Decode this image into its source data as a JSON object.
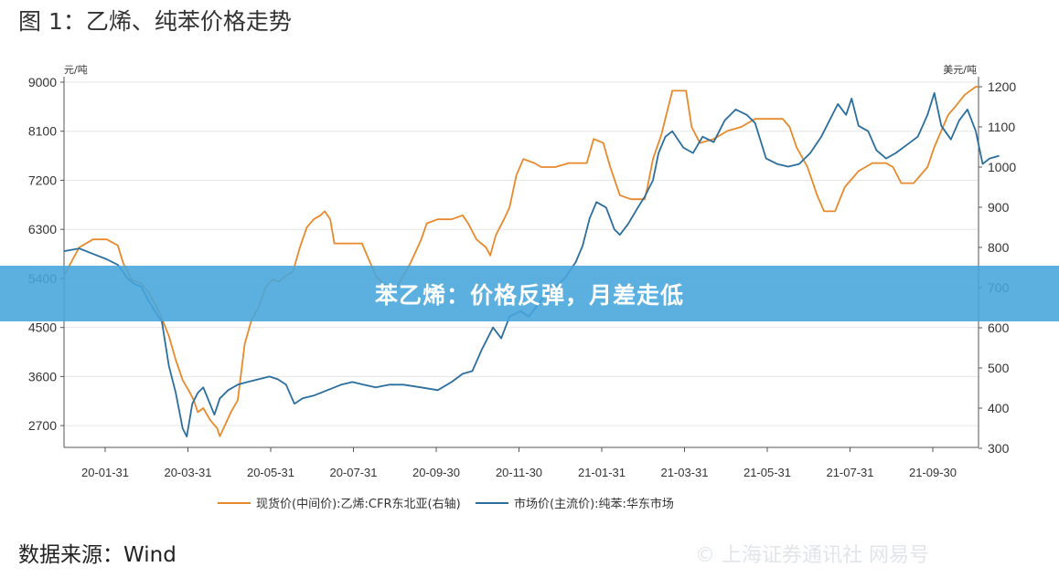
{
  "figure": {
    "title": "图 1：乙烯、纯苯价格走势",
    "source": "数据来源：Wind",
    "banner": "苯乙烯：价格反弹，月差走低",
    "watermark": "© 上海证券通讯社 网易号",
    "colors": {
      "orange": "#E8892B",
      "blue": "#2B6E9E",
      "banner": "#46A5DC",
      "grid": "#e6e6e6",
      "axis": "#555555"
    }
  },
  "chart_data": {
    "type": "line",
    "left_unit": "元/吨",
    "right_unit": "美元/吨",
    "y_left": {
      "min": 2300,
      "max": 9000,
      "ticks": [
        2700,
        3600,
        4500,
        5400,
        6300,
        7200,
        8100,
        9000
      ]
    },
    "y_right": {
      "min": 300,
      "max": 1200,
      "ticks": [
        300,
        400,
        500,
        600,
        700,
        800,
        900,
        1000,
        1100,
        1200
      ]
    },
    "x_ticks": [
      "20-01-31",
      "20-03-31",
      "20-05-31",
      "20-07-31",
      "20-09-30",
      "20-11-30",
      "21-01-31",
      "21-03-31",
      "21-05-31",
      "21-07-31",
      "21-09-30"
    ],
    "x_range": [
      -31,
      632
    ],
    "series": [
      {
        "name": "现货价(中间价):乙烯:CFR东北亚(右轴)",
        "axis": "right",
        "color": "#E8892B",
        "points": [
          [
            -31,
            730
          ],
          [
            -20,
            800
          ],
          [
            -10,
            820
          ],
          [
            0,
            820
          ],
          [
            8,
            805
          ],
          [
            12,
            760
          ],
          [
            18,
            720
          ],
          [
            25,
            710
          ],
          [
            30,
            690
          ],
          [
            38,
            640
          ],
          [
            45,
            580
          ],
          [
            50,
            520
          ],
          [
            55,
            470
          ],
          [
            60,
            440
          ],
          [
            63,
            420
          ],
          [
            66,
            390
          ],
          [
            70,
            400
          ],
          [
            75,
            370
          ],
          [
            80,
            350
          ],
          [
            82,
            330
          ],
          [
            86,
            360
          ],
          [
            90,
            390
          ],
          [
            95,
            420
          ],
          [
            100,
            560
          ],
          [
            105,
            620
          ],
          [
            110,
            650
          ],
          [
            115,
            700
          ],
          [
            120,
            720
          ],
          [
            125,
            715
          ],
          [
            130,
            730
          ],
          [
            135,
            740
          ],
          [
            140,
            800
          ],
          [
            145,
            850
          ],
          [
            150,
            870
          ],
          [
            155,
            880
          ],
          [
            158,
            890
          ],
          [
            162,
            870
          ],
          [
            165,
            810
          ],
          [
            175,
            810
          ],
          [
            185,
            810
          ],
          [
            190,
            770
          ],
          [
            195,
            730
          ],
          [
            200,
            710
          ],
          [
            210,
            700
          ],
          [
            220,
            760
          ],
          [
            228,
            820
          ],
          [
            232,
            860
          ],
          [
            240,
            870
          ],
          [
            250,
            870
          ],
          [
            258,
            880
          ],
          [
            262,
            860
          ],
          [
            268,
            820
          ],
          [
            275,
            800
          ],
          [
            278,
            780
          ],
          [
            282,
            830
          ],
          [
            288,
            870
          ],
          [
            292,
            900
          ],
          [
            297,
            980
          ],
          [
            302,
            1020
          ],
          [
            310,
            1010
          ],
          [
            315,
            1000
          ],
          [
            325,
            1000
          ],
          [
            335,
            1010
          ],
          [
            340,
            1010
          ],
          [
            348,
            1010
          ],
          [
            353,
            1070
          ],
          [
            360,
            1060
          ],
          [
            365,
            1000
          ],
          [
            372,
            930
          ],
          [
            380,
            920
          ],
          [
            390,
            920
          ],
          [
            392,
            950
          ],
          [
            396,
            1020
          ],
          [
            402,
            1080
          ],
          [
            410,
            1190
          ],
          [
            420,
            1190
          ],
          [
            424,
            1100
          ],
          [
            430,
            1060
          ],
          [
            440,
            1070
          ],
          [
            450,
            1090
          ],
          [
            460,
            1100
          ],
          [
            470,
            1120
          ],
          [
            480,
            1120
          ],
          [
            490,
            1120
          ],
          [
            495,
            1100
          ],
          [
            500,
            1050
          ],
          [
            508,
            1000
          ],
          [
            515,
            930
          ],
          [
            520,
            890
          ],
          [
            528,
            890
          ],
          [
            535,
            950
          ],
          [
            545,
            990
          ],
          [
            555,
            1010
          ],
          [
            565,
            1010
          ],
          [
            570,
            1000
          ],
          [
            576,
            960
          ],
          [
            585,
            960
          ],
          [
            595,
            1000
          ],
          [
            600,
            1050
          ],
          [
            610,
            1130
          ],
          [
            615,
            1150
          ],
          [
            622,
            1180
          ],
          [
            630,
            1200
          ],
          [
            632,
            1200
          ]
        ]
      },
      {
        "name": "市场价(主流价):纯苯:华东市场",
        "axis": "left",
        "color": "#2B6E9E",
        "points": [
          [
            -31,
            5900
          ],
          [
            -20,
            5950
          ],
          [
            -10,
            5850
          ],
          [
            0,
            5750
          ],
          [
            8,
            5650
          ],
          [
            15,
            5400
          ],
          [
            20,
            5300
          ],
          [
            25,
            5250
          ],
          [
            30,
            5000
          ],
          [
            35,
            4800
          ],
          [
            40,
            4600
          ],
          [
            45,
            3800
          ],
          [
            50,
            3300
          ],
          [
            55,
            2650
          ],
          [
            58,
            2500
          ],
          [
            62,
            3100
          ],
          [
            66,
            3300
          ],
          [
            70,
            3400
          ],
          [
            74,
            3150
          ],
          [
            78,
            2900
          ],
          [
            82,
            3200
          ],
          [
            88,
            3350
          ],
          [
            95,
            3450
          ],
          [
            102,
            3500
          ],
          [
            110,
            3550
          ],
          [
            118,
            3600
          ],
          [
            124,
            3550
          ],
          [
            130,
            3450
          ],
          [
            136,
            3100
          ],
          [
            142,
            3200
          ],
          [
            150,
            3250
          ],
          [
            160,
            3350
          ],
          [
            170,
            3450
          ],
          [
            178,
            3500
          ],
          [
            186,
            3450
          ],
          [
            195,
            3400
          ],
          [
            205,
            3450
          ],
          [
            215,
            3450
          ],
          [
            228,
            3400
          ],
          [
            240,
            3350
          ],
          [
            250,
            3500
          ],
          [
            258,
            3650
          ],
          [
            265,
            3700
          ],
          [
            272,
            4100
          ],
          [
            280,
            4500
          ],
          [
            286,
            4300
          ],
          [
            292,
            4700
          ],
          [
            300,
            4800
          ],
          [
            306,
            4700
          ],
          [
            312,
            4900
          ],
          [
            318,
            5100
          ],
          [
            325,
            5250
          ],
          [
            332,
            5400
          ],
          [
            340,
            5700
          ],
          [
            345,
            6000
          ],
          [
            350,
            6500
          ],
          [
            355,
            6800
          ],
          [
            362,
            6700
          ],
          [
            368,
            6300
          ],
          [
            372,
            6200
          ],
          [
            378,
            6400
          ],
          [
            385,
            6700
          ],
          [
            390,
            6900
          ],
          [
            396,
            7200
          ],
          [
            400,
            7700
          ],
          [
            405,
            8000
          ],
          [
            410,
            8100
          ],
          [
            418,
            7800
          ],
          [
            425,
            7700
          ],
          [
            432,
            8000
          ],
          [
            440,
            7900
          ],
          [
            448,
            8300
          ],
          [
            456,
            8500
          ],
          [
            464,
            8400
          ],
          [
            470,
            8250
          ],
          [
            478,
            7600
          ],
          [
            486,
            7500
          ],
          [
            494,
            7450
          ],
          [
            502,
            7500
          ],
          [
            510,
            7700
          ],
          [
            518,
            8000
          ],
          [
            524,
            8300
          ],
          [
            530,
            8600
          ],
          [
            536,
            8400
          ],
          [
            540,
            8700
          ],
          [
            545,
            8200
          ],
          [
            552,
            8100
          ],
          [
            558,
            7750
          ],
          [
            565,
            7600
          ],
          [
            572,
            7700
          ],
          [
            580,
            7850
          ],
          [
            588,
            8000
          ],
          [
            595,
            8400
          ],
          [
            600,
            8800
          ],
          [
            605,
            8200
          ],
          [
            612,
            7950
          ],
          [
            618,
            8300
          ],
          [
            624,
            8500
          ],
          [
            630,
            8100
          ],
          [
            635,
            7500
          ],
          [
            640,
            7600
          ],
          [
            647,
            7650
          ]
        ]
      }
    ]
  }
}
